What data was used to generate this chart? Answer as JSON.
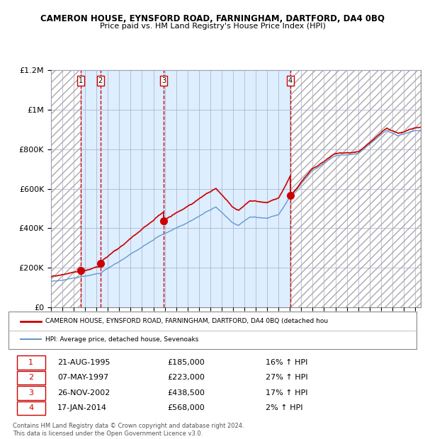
{
  "title1": "CAMERON HOUSE, EYNSFORD ROAD, FARNINGHAM, DARTFORD, DA4 0BQ",
  "title2": "Price paid vs. HM Land Registry's House Price Index (HPI)",
  "transactions": [
    {
      "num": 1,
      "date": "21-AUG-1995",
      "date_float": 1995.64,
      "price": 185000,
      "pct": "16%",
      "dir": "↑"
    },
    {
      "num": 2,
      "date": "07-MAY-1997",
      "date_float": 1997.35,
      "price": 223000,
      "pct": "27%",
      "dir": "↑"
    },
    {
      "num": 3,
      "date": "26-NOV-2002",
      "date_float": 2002.9,
      "price": 438500,
      "pct": "17%",
      "dir": "↑"
    },
    {
      "num": 4,
      "date": "17-JAN-2014",
      "date_float": 2014.05,
      "price": 568000,
      "pct": "2%",
      "dir": "↑"
    }
  ],
  "xmin": 1993.0,
  "xmax": 2025.5,
  "ymin": 0,
  "ymax": 1200000,
  "yticks": [
    0,
    200000,
    400000,
    600000,
    800000,
    1000000,
    1200000
  ],
  "ytick_labels": [
    "£0",
    "£200K",
    "£400K",
    "£600K",
    "£800K",
    "£1M",
    "£1.2M"
  ],
  "red_color": "#cc0000",
  "blue_color": "#6699cc",
  "bg_color": "#ddeeff",
  "legend_label_red": "CAMERON HOUSE, EYNSFORD ROAD, FARNINGHAM, DARTFORD, DA4 0BQ (detached hou",
  "legend_label_blue": "HPI: Average price, detached house, Sevenoaks",
  "footer": "Contains HM Land Registry data © Crown copyright and database right 2024.\nThis data is licensed under the Open Government Licence v3.0.",
  "seed": 42
}
